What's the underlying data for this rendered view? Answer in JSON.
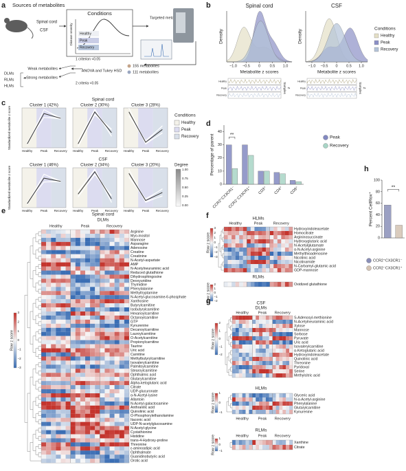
{
  "panels": [
    "a",
    "b",
    "c",
    "d",
    "e",
    "f",
    "g",
    "h"
  ],
  "a": {
    "title": "Sources of metabolites",
    "spinal_cord": "Spinal cord",
    "csf": "CSF",
    "conditions": "Conditions",
    "severity": "Disease severity",
    "groups": [
      "Healthy",
      "Peak",
      "Recovery"
    ],
    "targeted": "Targeted metabolomics",
    "counts": [
      "155 metabolites",
      "111 metabolites"
    ],
    "anova": "ANOVA and Tukey HSD",
    "criterion1": "1 criterion <0.05",
    "criterion2": "2 criteria <0.05",
    "weak": "Weak metabolites",
    "strong": "Strong metabolites",
    "classes": [
      "DLMs",
      "RLMs",
      "HLMs"
    ]
  },
  "b": {
    "titles": [
      "Spinal cord",
      "CSF"
    ],
    "ylabel": "Density",
    "xlabel": "Metabolite z scores",
    "xticks": [
      "−1.0",
      "−0.5",
      "0",
      "0.5",
      "1.0"
    ],
    "legend_title": "Conditions",
    "legend": [
      {
        "name": "Healthy",
        "color": "#e4dfc6"
      },
      {
        "name": "Peak",
        "color": "#8c90c6"
      },
      {
        "name": "Recovery",
        "color": "#b4c3d8"
      }
    ],
    "strip_labels": [
      "Healthy",
      "Peak",
      "Recovery"
    ],
    "samples": "Samples",
    "z": "Z"
  },
  "c": {
    "titles": [
      "Spinal cord",
      "CSF"
    ],
    "clusters": [
      [
        "Cluster 1 (42%)",
        "Cluster 2 (30%)",
        "Cluster 3 (28%)"
      ],
      [
        "Cluster 1 (46%)",
        "Cluster 2 (34%)",
        "Cluster 3 (20%)"
      ]
    ],
    "ylabel": "Standardized metabolite z score",
    "xticks": [
      "Healthy",
      "Peak",
      "Recovery"
    ],
    "legend_title": "Conditions",
    "legend": [
      {
        "name": "Healthy",
        "color": "#f4f2ea"
      },
      {
        "name": "Peak",
        "color": "#dcdcf0"
      },
      {
        "name": "Recovery",
        "color": "#d9e0ea"
      }
    ],
    "degree": "Degree",
    "degree_ticks": [
      "1.00",
      "0.75",
      "0.50",
      "0.25",
      "0.00"
    ]
  },
  "chart_data": [
    {
      "type": "bar",
      "ylabel": "Percentage of parent",
      "categories": [
        "CCR2⁺CX3CR1⁻",
        "CCR2⁻CX3CR1⁺",
        "CD3⁺",
        "CD4⁺",
        "CD8⁺"
      ],
      "series": [
        {
          "name": "Peak",
          "color": "#8389c1",
          "values": [
            30,
            30,
            10,
            9,
            3
          ]
        },
        {
          "name": "Recovery",
          "color": "#a8d5c6",
          "values": [
            12,
            22,
            10,
            8,
            2
          ]
        }
      ],
      "ylim": [
        0,
        45
      ],
      "yticks": [
        0,
        10,
        20,
        30,
        40
      ],
      "annotation": "**"
    },
    {
      "type": "bar",
      "ylabel": "Percent CellRox⁺",
      "series": [
        {
          "name": "CCR2⁺CX3CR1⁻",
          "color": "#8a8fb8",
          "values": [
            57
          ]
        },
        {
          "name": "CCR2⁻CX3CR1⁺",
          "color": "#d4c3b3",
          "values": [
            22
          ]
        }
      ],
      "ylim": [
        0,
        100
      ],
      "yticks": [
        0,
        20,
        40,
        60,
        80,
        100
      ],
      "annotation": "**"
    }
  ],
  "highlight_color": "#e0392f",
  "e": {
    "title": "Spinal cord",
    "subtitle": "DLMs",
    "columns": [
      "Healthy",
      "Peak",
      "Recovery"
    ],
    "scale_label": "Row z score",
    "scale_ticks": [
      "3",
      "2",
      "1",
      "0",
      "−1",
      "−2",
      "−3"
    ],
    "rows": [
      {
        "label": "Arginine"
      },
      {
        "label": "Myo-inositol"
      },
      {
        "label": "Mannose",
        "highlight": true
      },
      {
        "label": "Asparagine"
      },
      {
        "label": "Adenosine"
      },
      {
        "label": "Creatine"
      },
      {
        "label": "Creatinine"
      },
      {
        "label": "N-Acetyl-aspartate"
      },
      {
        "label": "AMP"
      },
      {
        "label": "N-Acetylneuraminic acid",
        "highlight": true
      },
      {
        "label": "Reduced glutathione"
      },
      {
        "label": "Dihydrosphingosine"
      },
      {
        "label": "Deoxyuridine"
      },
      {
        "label": "Thymidine"
      },
      {
        "label": "Phenylalanine"
      },
      {
        "label": "Methyltryptamine"
      },
      {
        "label": "N-Acetyl-glucosamine-6-phosphate"
      },
      {
        "label": "Xanthosine"
      },
      {
        "label": "Butyrylcarnitine"
      },
      {
        "label": "Isobutyrylcarnitine"
      },
      {
        "label": "Hexanoylcarnitine"
      },
      {
        "label": "Octanoylcarnitine"
      },
      {
        "label": "GTP"
      },
      {
        "label": "Kynurenine"
      },
      {
        "label": "Decanoylcarnitine"
      },
      {
        "label": "Lauroylcarnitine"
      },
      {
        "label": "O-Acetylcarnitine"
      },
      {
        "label": "Propionylcarnitine"
      },
      {
        "label": "Taurine"
      },
      {
        "label": "Uric acid",
        "highlight": true
      },
      {
        "label": "Carnitine"
      },
      {
        "label": "Methylbutyrylcarnitine"
      },
      {
        "label": "Isovalerylcarnitine",
        "highlight": true
      },
      {
        "label": "Palmitoylcarnitine"
      },
      {
        "label": "Stearoylcarnitine"
      },
      {
        "label": "Ophthalmic acid"
      },
      {
        "label": "Glutarylcarnitine"
      },
      {
        "label": "Alpha-ketoglutaric acid",
        "highlight": true
      },
      {
        "label": "Citrate"
      },
      {
        "label": "UDP-glucuronate"
      },
      {
        "label": "α-N-Acetyl-lysine"
      },
      {
        "label": "Allantoin"
      },
      {
        "label": "N-Acetyl-galactosamine"
      },
      {
        "label": "Anthranilic acid"
      },
      {
        "label": "Quinolinic acid",
        "highlight": true
      },
      {
        "label": "O-Phosphorylethanolamine"
      },
      {
        "label": "Itaconic acid"
      },
      {
        "label": "UDP-N-acetylglucosamine"
      },
      {
        "label": "N-Acetyl-glycine"
      },
      {
        "label": "Cystathionine"
      },
      {
        "label": "Histidine"
      },
      {
        "label": "trans-4-Hydroxy-proline"
      },
      {
        "label": "Threonine"
      },
      {
        "label": "ε-aminoadipic acid"
      },
      {
        "label": "Ophthalmate"
      },
      {
        "label": "Guanidinobutyric acid"
      },
      {
        "label": "Orotic acid"
      }
    ]
  },
  "f": {
    "hlms": {
      "title": "HLMs",
      "columns": [
        "Healthy",
        "Peak",
        "Recovery"
      ],
      "scale_label": "Row z score",
      "scale_ticks": [
        "3",
        "2",
        "1",
        "0",
        "−1",
        "−2",
        "−3"
      ],
      "rows": [
        {
          "label": "Hydroxyindoleacetate"
        },
        {
          "label": "Homocitrate"
        },
        {
          "label": "Argininosuccinate"
        },
        {
          "label": "Hydroxyglutaric acid"
        },
        {
          "label": "N-Acetylglutamate"
        },
        {
          "label": "α-N-Acetyl-arginine"
        },
        {
          "label": "Methylthioadenosine"
        },
        {
          "label": "Nicotinic acid"
        },
        {
          "label": "Nicotinamide"
        },
        {
          "label": "N-Carbamyl-glutamic acid"
        },
        {
          "label": "GDP-mannose"
        }
      ]
    },
    "rlms": {
      "title": "RLMs",
      "scale_label": "Row z score",
      "scale_ticks": [
        "2",
        "1",
        "0",
        "−1",
        "−2"
      ],
      "rows": [
        {
          "label": "Oxidized glutathione"
        }
      ]
    }
  },
  "g": {
    "title": "CSF",
    "dlms": {
      "title": "DLMs",
      "columns": [
        "Healthy",
        "Peak",
        "Recovery"
      ],
      "scale_label": "Row z score",
      "scale_ticks": [
        "2",
        "1",
        "0",
        "−1",
        "−2"
      ],
      "rows": [
        {
          "label": "S-Adenosyl-methionine"
        },
        {
          "label": "N-Acetylneuraminic acid",
          "highlight": true
        },
        {
          "label": "Xylose"
        },
        {
          "label": "Mannose",
          "highlight": true
        },
        {
          "label": "Sorbose"
        },
        {
          "label": "Pyruvate"
        },
        {
          "label": "Uric acid",
          "highlight": true
        },
        {
          "label": "Isovalerylcarnitine",
          "highlight": true
        },
        {
          "label": "α-Ketoglutaric acid",
          "highlight": true
        },
        {
          "label": "Hydroxyindoleacetate"
        },
        {
          "label": "Quinolinic acid",
          "highlight": true
        },
        {
          "label": "Threonine"
        },
        {
          "label": "Pyridoxal"
        },
        {
          "label": "Serine"
        },
        {
          "label": "Methylcitric acid"
        }
      ]
    },
    "hlms": {
      "title": "HLMs",
      "columns": [
        "Healthy",
        "Peak",
        "Recovery"
      ],
      "scale_label": "Row z score",
      "scale_ticks": [
        "1",
        "0",
        "−1"
      ],
      "rows": [
        {
          "label": "Glyceric acid"
        },
        {
          "label": "N-α-Acetyl-arginine"
        },
        {
          "label": "Phenylalanine"
        },
        {
          "label": "Glutarylcarnitine"
        },
        {
          "label": "Kynurenine"
        }
      ]
    },
    "rlms": {
      "title": "RLMs",
      "columns": [
        "Healthy",
        "Peak",
        "Recovery"
      ],
      "scale_label": "Row z score",
      "scale_ticks": [
        "1",
        "0",
        "−1"
      ],
      "rows": [
        {
          "label": "Xanthine"
        },
        {
          "label": "Citrate"
        }
      ]
    }
  }
}
